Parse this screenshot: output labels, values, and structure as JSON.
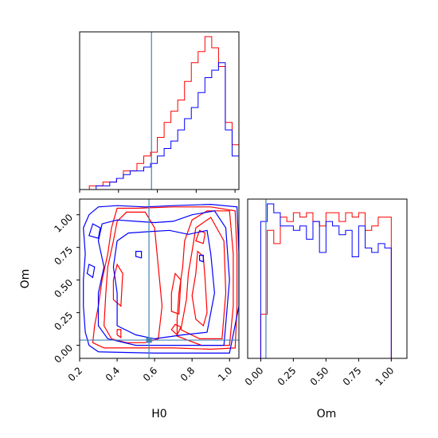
{
  "chart_data": {
    "type": "corner",
    "parameters": [
      "H0",
      "Om"
    ],
    "truth": {
      "H0": 0.57,
      "Om": 0.04
    },
    "colors": {
      "series_a": "#ff0000",
      "series_b": "#0000ff",
      "truth": "#4682b4",
      "axes": "#000000"
    },
    "panels": [
      {
        "id": "H0-marginal",
        "type": "histogram",
        "x_range": [
          0.2,
          1.02
        ],
        "x_ticks": [
          0.2,
          0.4,
          0.6,
          0.8,
          1.0
        ],
        "bin_edges": [
          0.25,
          0.285,
          0.32,
          0.355,
          0.39,
          0.425,
          0.46,
          0.495,
          0.53,
          0.565,
          0.6,
          0.635,
          0.67,
          0.705,
          0.74,
          0.775,
          0.81,
          0.845,
          0.88,
          0.915,
          0.95,
          0.985,
          1.02
        ],
        "series": [
          {
            "color": "red",
            "counts": [
              1,
              1,
              2,
              2,
              3,
              5,
              5,
              7,
              9,
              10,
              14,
              18,
              21,
              24,
              29,
              34,
              37,
              41,
              38,
              33,
              18,
              12
            ]
          },
          {
            "color": "blue",
            "counts": [
              0,
              1,
              1,
              2,
              3,
              4,
              5,
              5,
              6,
              7,
              9,
              11,
              13,
              16,
              19,
              22,
              26,
              30,
              32,
              34,
              16,
              9
            ]
          }
        ]
      },
      {
        "id": "H0-Om-joint",
        "type": "contour",
        "x_range": [
          0.2,
          1.05
        ],
        "y_range": [
          -0.1,
          1.12
        ],
        "x_ticks": [
          0.2,
          0.4,
          0.6,
          0.8,
          1.0
        ],
        "y_ticks": [
          0.0,
          0.25,
          0.5,
          0.75,
          1.0
        ],
        "series": [
          {
            "color": "red",
            "levels": 3
          },
          {
            "color": "blue",
            "levels": 3
          }
        ]
      },
      {
        "id": "Om-marginal",
        "type": "histogram",
        "x_range": [
          -0.1,
          1.12
        ],
        "x_ticks": [
          0.0,
          0.25,
          0.5,
          0.75,
          1.0
        ],
        "bin_edges": [
          0.0,
          0.05,
          0.1,
          0.15,
          0.2,
          0.25,
          0.3,
          0.35,
          0.4,
          0.45,
          0.5,
          0.55,
          0.6,
          0.65,
          0.7,
          0.75,
          0.8,
          0.85,
          0.9,
          0.95,
          1.0
        ],
        "series": [
          {
            "color": "red",
            "counts": [
              10,
              29,
              26,
              32,
              31,
              33,
              32,
              33,
              31,
              30,
              33,
              33,
              31,
              33,
              32,
              33,
              29,
              30,
              32,
              32
            ]
          },
          {
            "color": "blue",
            "counts": [
              31,
              35,
              33,
              30,
              30,
              29,
              30,
              27,
              31,
              24,
              31,
              30,
              28,
              29,
              23,
              30,
              25,
              24,
              26,
              25
            ]
          }
        ]
      }
    ],
    "xlabels": {
      "H0": "H0",
      "Om": "Om"
    },
    "ylabels": {
      "Om": "Om"
    }
  }
}
